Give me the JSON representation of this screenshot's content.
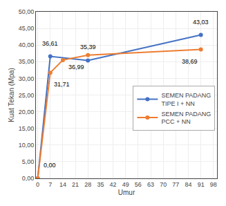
{
  "chart_data": {
    "type": "line",
    "xlabel": "Umur",
    "ylabel": "Kuat Tekan (Mpa)",
    "series": [
      {
        "name": "SEMEN PADANG\nTIPE I + NN",
        "color": "#4472C4",
        "marker": "circle",
        "x": [
          0,
          7,
          28,
          91
        ],
        "values": [
          0.0,
          36.61,
          35.39,
          43.03
        ],
        "annotations": [
          {
            "x": 0,
            "y": 0.0,
            "text": "0,00"
          },
          {
            "x": 7,
            "y": 36.61,
            "text": "36,61"
          },
          {
            "x": 28,
            "y": 35.39,
            "text": "35,39"
          },
          {
            "x": 91,
            "y": 43.03,
            "text": "43,03"
          }
        ]
      },
      {
        "name": "SEMEN PADANG\nPCC + NN",
        "color": "#ED7D31",
        "marker": "circle",
        "x": [
          0,
          7,
          14,
          28,
          91
        ],
        "values": [
          0.0,
          31.71,
          35.5,
          36.99,
          38.69
        ],
        "annotations": [
          {
            "x": 7,
            "y": 31.71,
            "text": "31,71"
          },
          {
            "x": 28,
            "y": 36.99,
            "text": "36,99"
          },
          {
            "x": 91,
            "y": 38.69,
            "text": "38,69"
          }
        ]
      }
    ],
    "xlim": [
      -1,
      100
    ],
    "xticks": [
      0,
      7,
      14,
      21,
      28,
      35,
      42,
      49,
      56,
      63,
      70,
      77,
      84,
      91,
      98
    ],
    "ylim": [
      0,
      50
    ],
    "yticks": [
      {
        "value": 0.0,
        "label": "0,00"
      },
      {
        "value": 5.0,
        "label": "5,00"
      },
      {
        "value": 10.0,
        "label": "10,00"
      },
      {
        "value": 15.0,
        "label": "15,00"
      },
      {
        "value": 20.0,
        "label": "20,00"
      },
      {
        "value": 25.0,
        "label": "25,00"
      },
      {
        "value": 30.0,
        "label": "30,00"
      },
      {
        "value": 35.0,
        "label": "35,00"
      },
      {
        "value": 40.0,
        "label": "40,00"
      },
      {
        "value": 45.0,
        "label": "45,00"
      },
      {
        "value": 50.0,
        "label": "50,00"
      }
    ],
    "grid": true,
    "legend": "right"
  }
}
